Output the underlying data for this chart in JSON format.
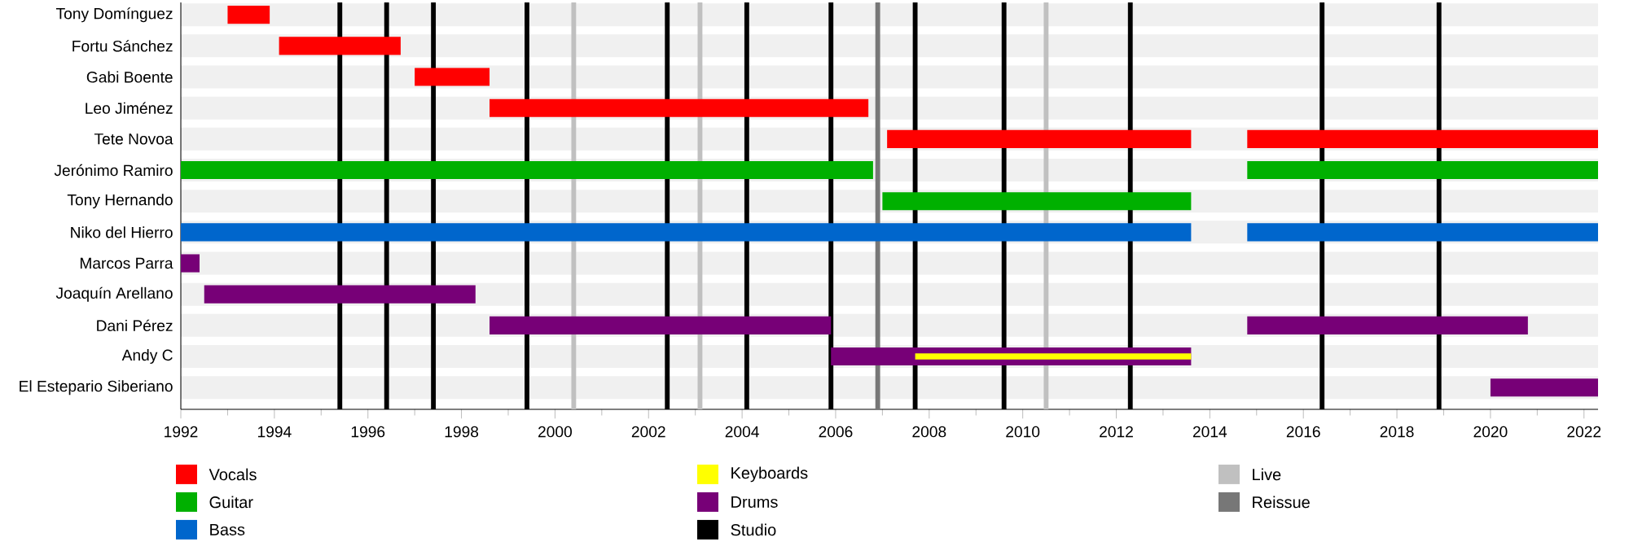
{
  "chart_data": {
    "type": "bar",
    "orientation": "horizontal",
    "categories": [
      "Tony Domínguez",
      "Fortu Sánchez",
      "Gabi Boente",
      "Leo Jiménez",
      "Tete Novoa",
      "Jerónimo Ramiro",
      "Tony Hernando",
      "Niko del Hierro",
      "Marcos Parra",
      "Joaquín Arellano",
      "Dani Pérez",
      "Andy C",
      "El Estepario Siberiano"
    ],
    "series": [
      {
        "name": "Vocals",
        "color": "#ff0000",
        "values": [
          0.9,
          2.6,
          1.6,
          8.1,
          6.5,
          null,
          null,
          null,
          null,
          null,
          null,
          null,
          null
        ],
        "base": [
          1993.0,
          1994.1,
          1997.0,
          1998.6,
          2007.1,
          null,
          null,
          null,
          null,
          null,
          null,
          null,
          null
        ]
      },
      {
        "color": "#ff0000",
        "values": [
          null,
          null,
          null,
          null,
          7.5,
          null,
          null,
          null,
          null,
          null,
          null,
          null,
          null
        ],
        "base": [
          null,
          null,
          null,
          null,
          2014.8,
          null,
          null,
          null,
          null,
          null,
          null,
          null,
          null
        ]
      },
      {
        "name": "Guitar",
        "color": "#00b000",
        "values": [
          null,
          null,
          null,
          null,
          null,
          14.8,
          6.6,
          null,
          null,
          null,
          null,
          null,
          null
        ],
        "base": [
          null,
          null,
          null,
          null,
          null,
          1992,
          2007.0,
          null,
          null,
          null,
          null,
          null,
          null
        ]
      },
      {
        "color": "#00b000",
        "values": [
          null,
          null,
          null,
          null,
          null,
          7.5,
          null,
          null,
          null,
          null,
          null,
          null,
          null
        ],
        "base": [
          null,
          null,
          null,
          null,
          null,
          2014.8,
          null,
          null,
          null,
          null,
          null,
          null,
          null
        ]
      },
      {
        "name": "Bass",
        "color": "#0066cc",
        "values": [
          null,
          null,
          null,
          null,
          null,
          null,
          null,
          21.6,
          null,
          null,
          null,
          null,
          null
        ],
        "base": [
          null,
          null,
          null,
          null,
          null,
          null,
          null,
          1992,
          null,
          null,
          null,
          null,
          null
        ]
      },
      {
        "color": "#0066cc",
        "values": [
          null,
          null,
          null,
          null,
          null,
          null,
          null,
          7.5,
          null,
          null,
          null,
          null,
          null
        ],
        "base": [
          null,
          null,
          null,
          null,
          null,
          null,
          null,
          2014.8,
          null,
          null,
          null,
          null,
          null
        ]
      },
      {
        "name": "Keyboards",
        "color": "#ffff00",
        "values": [
          null,
          null,
          null,
          null,
          null,
          null,
          null,
          null,
          null,
          null,
          null,
          5.9,
          null
        ],
        "base": [
          null,
          null,
          null,
          null,
          null,
          null,
          null,
          null,
          null,
          null,
          null,
          2007.7,
          null
        ]
      },
      {
        "name": "Drums",
        "color": "#770077",
        "values": [
          null,
          null,
          null,
          null,
          null,
          null,
          null,
          null,
          0.4,
          5.8,
          7.3,
          7.7,
          2.3
        ],
        "base": [
          null,
          null,
          null,
          null,
          null,
          null,
          null,
          null,
          1992,
          1992.5,
          1998.6,
          2005.9,
          2020.0
        ]
      },
      {
        "color": "#770077",
        "values": [
          null,
          null,
          null,
          null,
          null,
          null,
          null,
          null,
          null,
          null,
          6.0,
          null,
          null
        ],
        "base": [
          null,
          null,
          null,
          null,
          null,
          null,
          null,
          null,
          null,
          null,
          2014.8,
          null,
          null
        ]
      },
      {
        "name": "Studio",
        "color": "#000000",
        "values": [
          null,
          null,
          null,
          null,
          null,
          null,
          null,
          null,
          null,
          null,
          null,
          null,
          null
        ]
      },
      {
        "name": "Live",
        "color": "#c0c0c0",
        "values": [
          null,
          null,
          null,
          null,
          null,
          null,
          null,
          null,
          null,
          null,
          null,
          null,
          null
        ]
      },
      {
        "name": "Reissue",
        "color": "#777777",
        "values": [
          null,
          null,
          null,
          null,
          null,
          null,
          null,
          null,
          null,
          null,
          null,
          null,
          null
        ]
      }
    ],
    "ref_lines": [
      {
        "axis": "x",
        "value": 1995.4,
        "color": "#000000"
      },
      {
        "axis": "x",
        "value": 1996.4,
        "color": "#000000"
      },
      {
        "axis": "x",
        "value": 1997.4,
        "color": "#000000"
      },
      {
        "axis": "x",
        "value": 1999.4,
        "color": "#000000"
      },
      {
        "axis": "x",
        "value": 2000.4,
        "color": "#c0c0c0"
      },
      {
        "axis": "x",
        "value": 2002.4,
        "color": "#000000"
      },
      {
        "axis": "x",
        "value": 2003.1,
        "color": "#c0c0c0"
      },
      {
        "axis": "x",
        "value": 2004.1,
        "color": "#000000"
      },
      {
        "axis": "x",
        "value": 2005.9,
        "color": "#000000"
      },
      {
        "axis": "x",
        "value": 2006.9,
        "color": "#777777"
      },
      {
        "axis": "x",
        "value": 2007.7,
        "color": "#000000"
      },
      {
        "axis": "x",
        "value": 2009.6,
        "color": "#000000"
      },
      {
        "axis": "x",
        "value": 2010.5,
        "color": "#c0c0c0"
      },
      {
        "axis": "x",
        "value": 2012.3,
        "color": "#000000"
      },
      {
        "axis": "x",
        "value": 2016.4,
        "color": "#000000"
      },
      {
        "axis": "x",
        "value": 2018.9,
        "color": "#000000"
      }
    ],
    "xlim": [
      1992,
      2022.3
    ],
    "xticks": [
      1992,
      1994,
      1996,
      1998,
      2000,
      2002,
      2004,
      2006,
      2008,
      2010,
      2012,
      2014,
      2016,
      2018,
      2020,
      2022
    ],
    "grid": "y",
    "legend": "bottom"
  }
}
